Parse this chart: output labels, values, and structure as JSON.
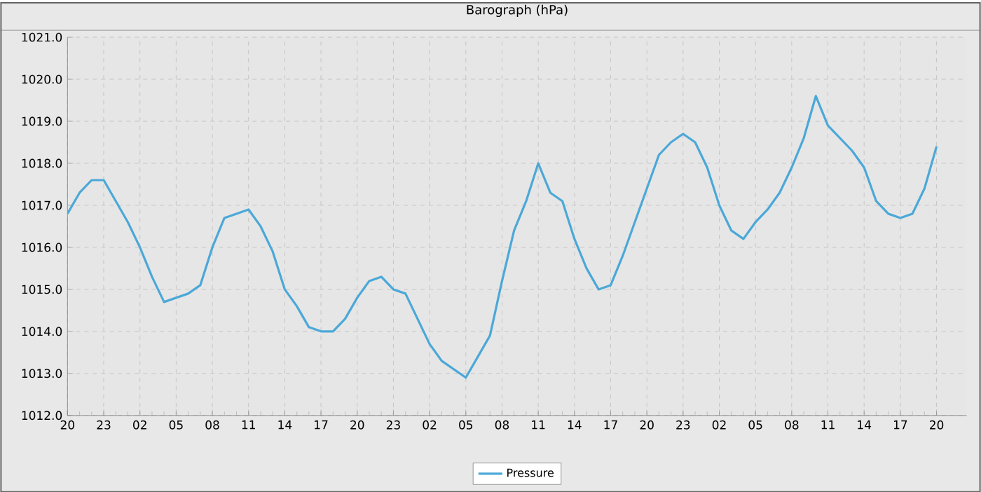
{
  "chart_data": {
    "type": "line",
    "title": "Barograph (hPa)",
    "categories": [
      "20",
      null,
      null,
      "23",
      null,
      null,
      "02",
      null,
      null,
      "05",
      null,
      null,
      "08",
      null,
      null,
      "11",
      null,
      null,
      "14",
      null,
      null,
      "17",
      null,
      null,
      "20",
      null,
      null,
      "23",
      null,
      null,
      "02",
      null,
      null,
      "05",
      null,
      null,
      "08",
      null,
      null,
      "11",
      null,
      null,
      "14",
      null,
      null,
      "17",
      null,
      null,
      "20",
      null,
      null,
      "23",
      null,
      null,
      "02",
      null,
      null,
      "05",
      null,
      null,
      "08",
      null,
      null,
      "11",
      null,
      null,
      "14",
      null,
      null,
      "17",
      null,
      null,
      "20"
    ],
    "series": [
      {
        "name": "Pressure",
        "color": "#4ba8d8",
        "values": [
          1016.8,
          1017.3,
          1017.6,
          1017.6,
          1017.1,
          1016.6,
          1016.0,
          1015.3,
          1014.7,
          1014.8,
          1014.9,
          1015.1,
          1016.0,
          1016.7,
          1016.8,
          1016.9,
          1016.5,
          1015.9,
          1015.0,
          1014.6,
          1014.1,
          1014.0,
          1014.0,
          1014.3,
          1014.8,
          1015.2,
          1015.3,
          1015.0,
          1014.9,
          1014.3,
          1013.7,
          1013.3,
          1013.1,
          1012.9,
          1013.4,
          1013.9,
          1015.2,
          1016.4,
          1017.1,
          1018.0,
          1017.3,
          1017.1,
          1016.2,
          1015.5,
          1015.0,
          1015.1,
          1015.8,
          1016.6,
          1017.4,
          1018.2,
          1018.5,
          1018.7,
          1018.5,
          1017.9,
          1017.0,
          1016.4,
          1016.2,
          1016.6,
          1016.9,
          1017.3,
          1017.9,
          1018.6,
          1019.6,
          1018.9,
          1018.6,
          1018.3,
          1017.9,
          1017.1,
          1016.8,
          1016.7,
          1016.8,
          1017.4,
          1018.4
        ]
      }
    ],
    "ylim": [
      1012,
      1021
    ],
    "yticks": [
      {
        "value": 1012,
        "label": "1012.0"
      },
      {
        "value": 1013,
        "label": "1013.0"
      },
      {
        "value": 1014,
        "label": "1014.0"
      },
      {
        "value": 1015,
        "label": "1015.0"
      },
      {
        "value": 1016,
        "label": "1016.0"
      },
      {
        "value": 1017,
        "label": "1017.0"
      },
      {
        "value": 1018,
        "label": "1018.0"
      },
      {
        "value": 1019,
        "label": "1019.0"
      },
      {
        "value": 1020,
        "label": "1020.0"
      },
      {
        "value": 1021,
        "label": "1021.0"
      }
    ],
    "grid": true,
    "legend": "bottom",
    "marker": "none",
    "line_style": "solid"
  }
}
